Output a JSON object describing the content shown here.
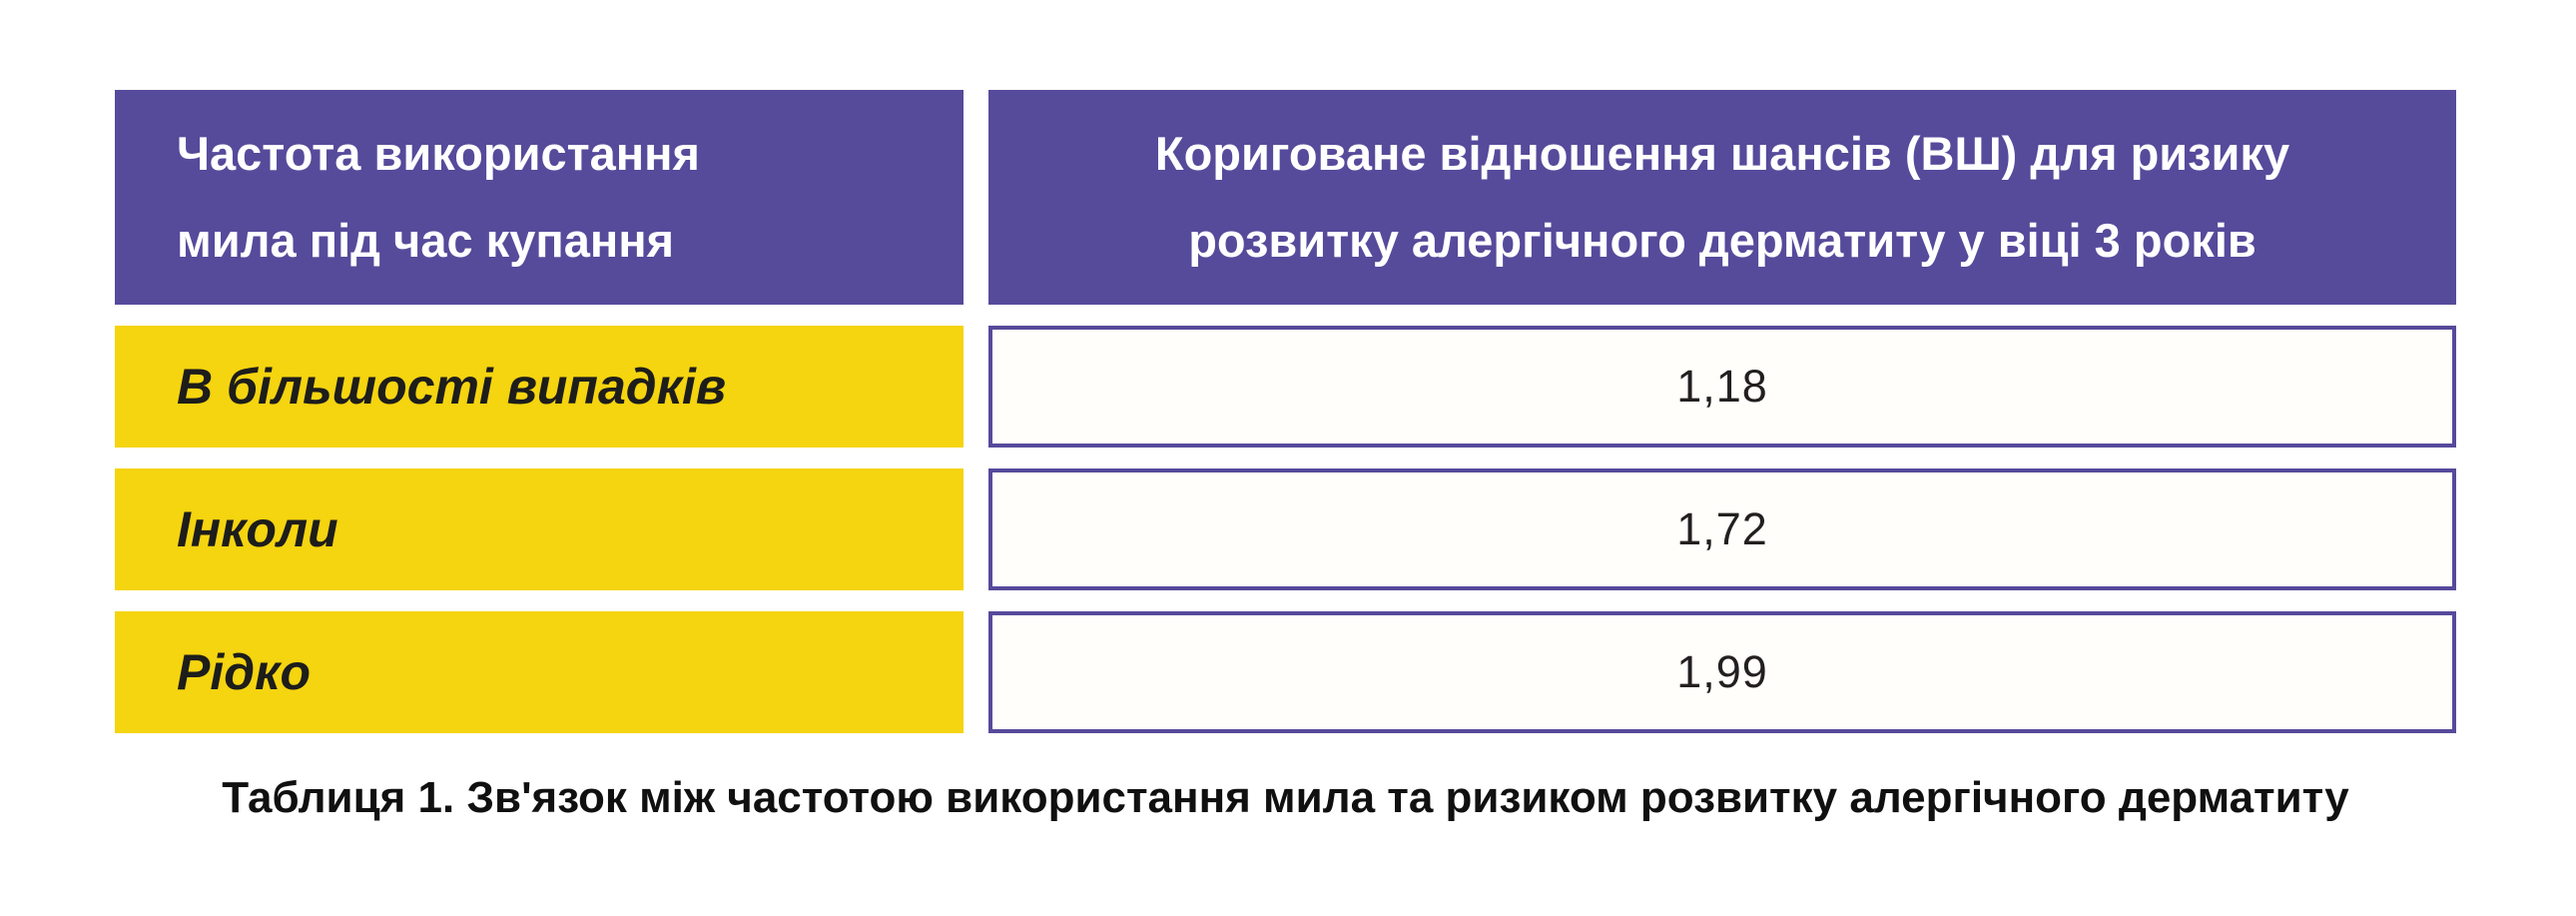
{
  "colors": {
    "purple": "#564A9B",
    "yellow": "#F5D410",
    "value_border": "#564A9B",
    "header_text": "#FFFFFF",
    "label_text": "#1D1D1B",
    "value_text": "#231F20",
    "page_background": "#FFFFFF"
  },
  "table": {
    "header": {
      "col1_lines": [
        "Частота використання",
        "мила під час купання"
      ],
      "col2_lines": [
        "Кориговане відношення шансів (ВШ) для ризику",
        "розвитку алергічного дерматиту у віці 3 років"
      ]
    },
    "rows": [
      {
        "label": "В більшості випадків",
        "value": "1,18"
      },
      {
        "label": "Інколи",
        "value": "1,72"
      },
      {
        "label": "Рідко",
        "value": "1,99"
      }
    ]
  },
  "caption": "Таблиця 1. Зв'язок між частотою використання мила та ризиком розвитку алергічного дерматиту",
  "chart_data": {
    "type": "table",
    "title": "Таблиця 1. Зв'язок між частотою використання мила та ризиком розвитку алергічного дерматиту",
    "columns": [
      "Частота використання мила під час купання",
      "Кориговане відношення шансів (ВШ) для ризику розвитку алергічного дерматиту у віці 3 років"
    ],
    "categories": [
      "В більшості випадків",
      "Інколи",
      "Рідко"
    ],
    "values": [
      1.18,
      1.72,
      1.99
    ],
    "rows": [
      [
        "В більшості випадків",
        "1,18"
      ],
      [
        "Інколи",
        "1,72"
      ],
      [
        "Рідко",
        "1,99"
      ]
    ],
    "decimal_separator": ","
  }
}
